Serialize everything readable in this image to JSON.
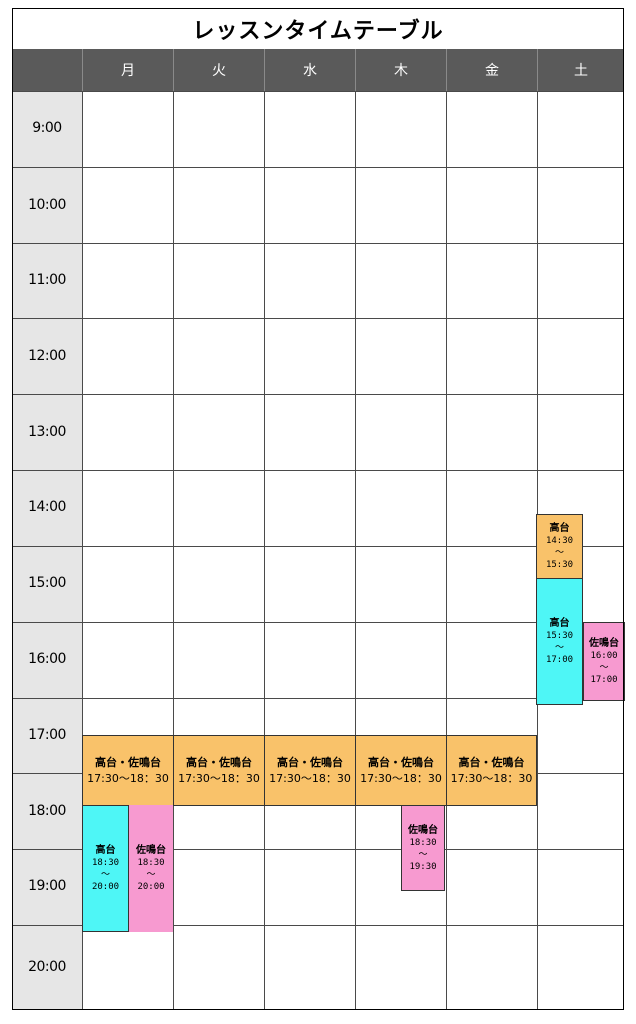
{
  "title": "レッスンタイムテーブル",
  "days": [
    "月",
    "火",
    "水",
    "木",
    "金",
    "土"
  ],
  "times": [
    "9:00",
    "10:00",
    "11:00",
    "12:00",
    "13:00",
    "14:00",
    "15:00",
    "16:00",
    "17:00",
    "18:00",
    "19:00",
    "20:00"
  ],
  "colors": {
    "orange": "#f9c26a",
    "cyan": "#4ef6f6",
    "pink": "#f79ad0",
    "header": "#5a5a5a",
    "time_column": "#e6e6e6"
  },
  "lessons": {
    "mon_shared": {
      "name": "高台・佐鳴台",
      "time": "17:30〜18：30"
    },
    "tue_shared": {
      "name": "高台・佐鳴台",
      "time": "17:30〜18：30"
    },
    "wed_shared": {
      "name": "高台・佐鳴台",
      "time": "17:30〜18：30"
    },
    "thu_shared": {
      "name": "高台・佐鳴台",
      "time": "17:30〜18：30"
    },
    "fri_shared": {
      "name": "高台・佐鳴台",
      "time": "17:30〜18：30"
    },
    "mon_takadai": {
      "name": "高台",
      "start": "18:30",
      "sep": "〜",
      "end": "20:00"
    },
    "mon_sanarudai": {
      "name": "佐鳴台",
      "start": "18:30",
      "sep": "〜",
      "end": "20:00"
    },
    "thu_sanarudai": {
      "name": "佐鳴台",
      "start": "18:30",
      "sep": "〜",
      "end": "19:30"
    },
    "sat_takadai_1": {
      "name": "高台",
      "start": "14:30",
      "sep": "〜",
      "end": "15:30"
    },
    "sat_takadai_2": {
      "name": "高台",
      "start": "15:30",
      "sep": "〜",
      "end": "17:00"
    },
    "sat_sanarudai": {
      "name": "佐鳴台",
      "start": "16:00",
      "sep": "〜",
      "end": "17:00"
    }
  }
}
